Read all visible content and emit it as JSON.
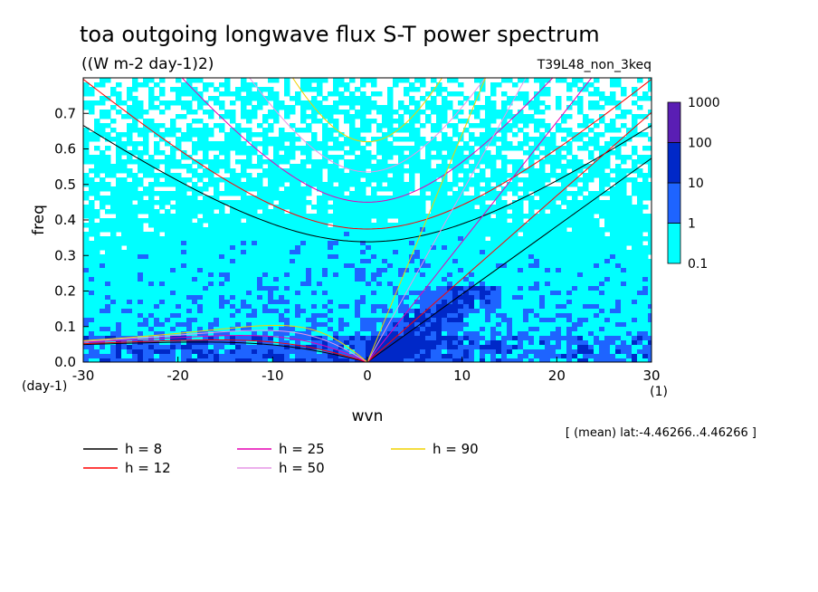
{
  "chart_data": {
    "type": "heatmap",
    "title": "toa outgoing longwave flux S-T power spectrum",
    "subtitle": "((W m-2 day-1)2)",
    "run_label": "T39L48_non_3keq",
    "xlabel": "wvn",
    "ylabel": "freq",
    "x_unit": "(1)",
    "y_unit": "(day-1)",
    "xlim": [
      -30,
      30
    ],
    "ylim": [
      0,
      0.8
    ],
    "x_ticks": [
      -30,
      -20,
      -10,
      0,
      10,
      20,
      30
    ],
    "y_ticks": [
      0.0,
      0.1,
      0.2,
      0.3,
      0.4,
      0.5,
      0.6,
      0.7
    ],
    "x_tick_labels": [
      "-30",
      "-20",
      "-10",
      "0",
      "10",
      "20",
      "30"
    ],
    "y_tick_labels": [
      "0.0",
      "0.1",
      "0.2",
      "0.3",
      "0.4",
      "0.5",
      "0.6",
      "0.7"
    ],
    "colorbar": {
      "levels": [
        0.1,
        1,
        10,
        100,
        1000
      ],
      "labels": [
        "0.1",
        "1",
        "10",
        "100",
        "1000"
      ],
      "colors": [
        "#00ffff",
        "#1e64ff",
        "#0028c8",
        "#5a1eb4"
      ]
    },
    "mean_note": "[ (mean) lat:-4.46266..4.46266 ]",
    "series": [
      {
        "name": "h =  8",
        "h": 8,
        "color": "#000000"
      },
      {
        "name": "h = 12",
        "h": 12,
        "color": "#ff0000"
      },
      {
        "name": "h = 25",
        "h": 25,
        "color": "#e600b4"
      },
      {
        "name": "h = 50",
        "h": 50,
        "color": "#e696e6"
      },
      {
        "name": "h = 90",
        "h": 90,
        "color": "#f0d200"
      }
    ]
  }
}
